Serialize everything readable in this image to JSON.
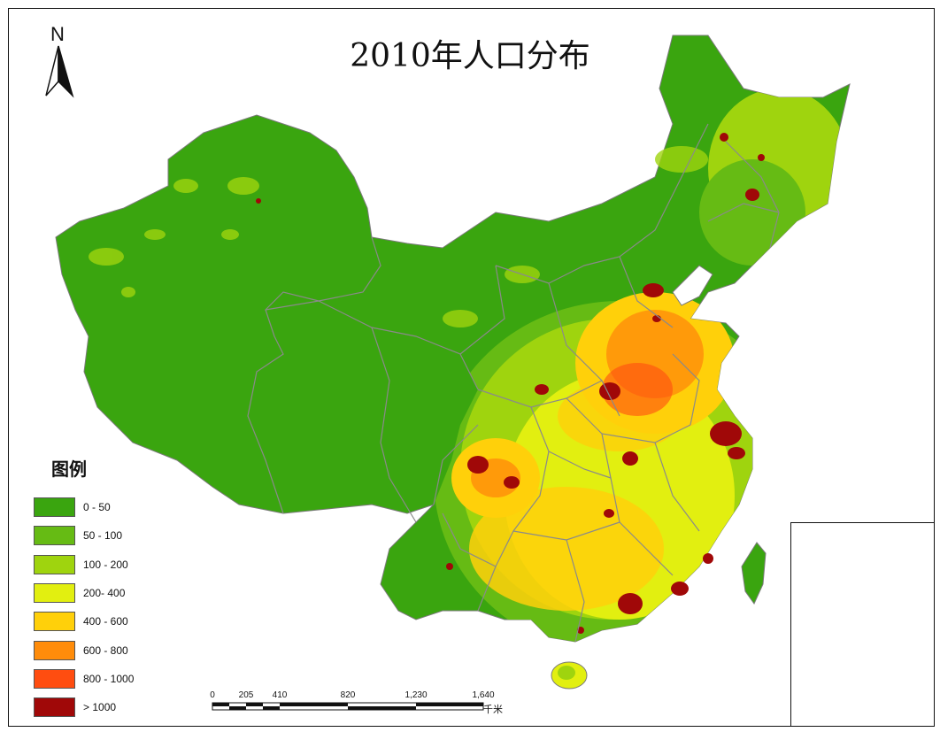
{
  "map": {
    "title": "2010年人口分布",
    "north_label": "N",
    "legend": {
      "title": "图例",
      "items": [
        {
          "label": "0 - 50",
          "color": "#3aa50f"
        },
        {
          "label": "50 - 100",
          "color": "#66bb14"
        },
        {
          "label": "100 - 200",
          "color": "#9fd40e"
        },
        {
          "label": "200- 400",
          "color": "#e2ef10"
        },
        {
          "label": "400 - 600",
          "color": "#ffd00a"
        },
        {
          "label": "600 - 800",
          "color": "#ff8c0a"
        },
        {
          "label": "800 - 1000",
          "color": "#ff4d10"
        },
        {
          "label": "> 1000",
          "color": "#a00808"
        }
      ]
    },
    "scale_bar": {
      "ticks": [
        "0",
        "205",
        "410",
        "820",
        "1,230",
        "1,640"
      ],
      "unit": "千米"
    },
    "colors": {
      "boundary": "#8a8a8a",
      "frame": "#111111"
    }
  }
}
